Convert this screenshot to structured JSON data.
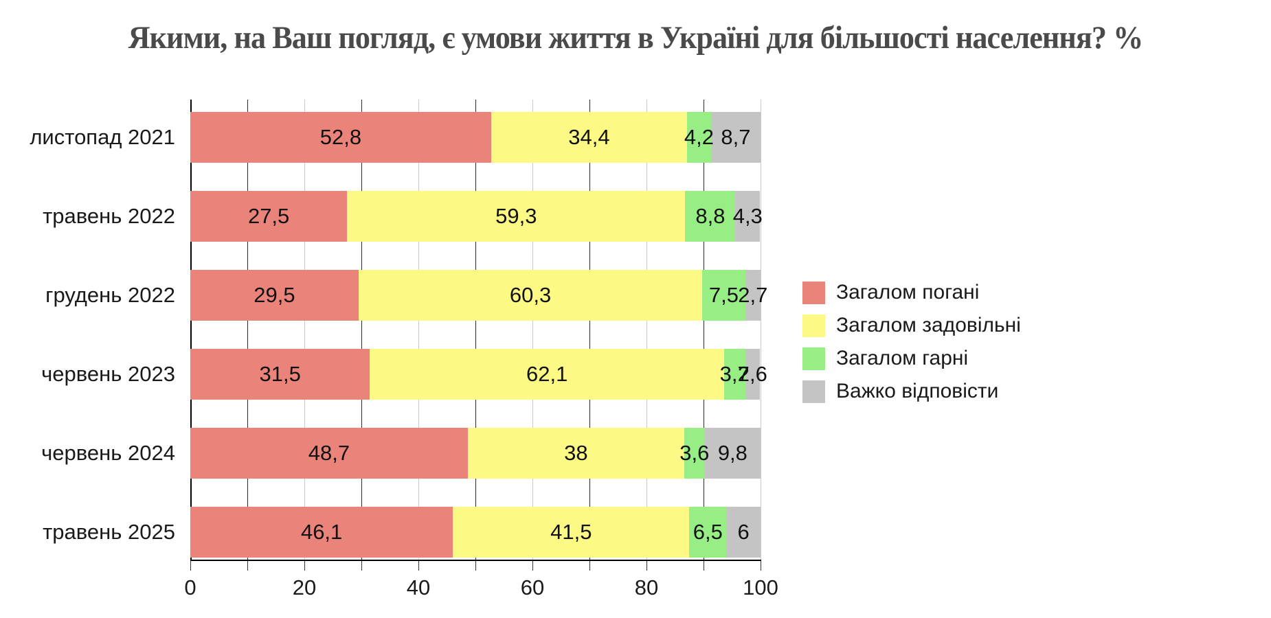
{
  "title": "Якими, на Ваш погляд, є умови життя в Україні для більшості населення? %",
  "chart_data": {
    "type": "bar",
    "stacked": true,
    "orientation": "horizontal",
    "title": "Якими, на Ваш погляд, є умови життя в Україні для більшості населення? %",
    "categories": [
      "листопад 2021",
      "травень 2022",
      "грудень 2022",
      "червень 2023",
      "червень 2024",
      "травень 2025"
    ],
    "series": [
      {
        "name": "Загалом погані",
        "color": "#ea837a",
        "values": [
          52.8,
          27.5,
          29.5,
          31.5,
          48.7,
          46.1
        ]
      },
      {
        "name": "Загалом задовільні",
        "color": "#fcf985",
        "values": [
          34.4,
          59.3,
          60.3,
          62.1,
          38.0,
          41.5
        ]
      },
      {
        "name": "Загалом гарні",
        "color": "#97ee84",
        "values": [
          4.2,
          8.8,
          7.5,
          3.7,
          3.6,
          6.5
        ]
      },
      {
        "name": "Важко відповісти",
        "color": "#c4c4c4",
        "values": [
          8.7,
          4.3,
          2.7,
          2.6,
          9.8,
          6.0
        ]
      }
    ],
    "value_labels": [
      [
        "52,8",
        "34,4",
        "4,2",
        "8,7"
      ],
      [
        "27,5",
        "59,3",
        "8,8",
        "4,3"
      ],
      [
        "29,5",
        "60,3",
        "7,5",
        "2,7"
      ],
      [
        "31,5",
        "62,1",
        "3,7",
        "2,6"
      ],
      [
        "48,7",
        "38",
        "3,6",
        "9,8"
      ],
      [
        "46,1",
        "41,5",
        "6,5",
        "6"
      ]
    ],
    "xlim": [
      0,
      100
    ],
    "x_tick_labels": [
      "0",
      "20",
      "40",
      "60",
      "80",
      "100"
    ],
    "x_major_tick_every": 20,
    "x_minor_tick_every": 10,
    "grid": true,
    "legend_position": "right",
    "decimal_separator": ","
  }
}
